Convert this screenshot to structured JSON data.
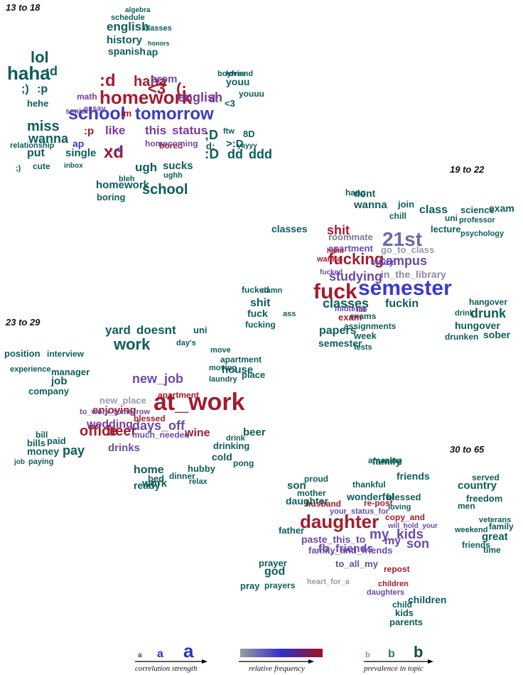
{
  "groups": [
    {
      "label": "13 to 18",
      "words": [
        [
          "homework",
          "#a41c2e",
          26
        ],
        [
          "school",
          "#3a3acb",
          25
        ],
        [
          "tomorrow",
          "#3a3acb",
          24
        ],
        [
          "xd",
          "#a41c2e",
          24
        ],
        [
          ":d",
          "#a41c2e",
          24
        ],
        [
          "haha",
          "#a41c2e",
          20
        ],
        [
          "<3",
          "#a41c2e",
          22
        ],
        [
          "(:",
          "#a41c2e",
          22
        ],
        [
          "english",
          "#7a3a9a",
          18
        ],
        [
          "like",
          "#7a3a9a",
          17
        ],
        [
          "this",
          "#7a3a9a",
          17
        ],
        [
          "status",
          "#7a3a9a",
          17
        ],
        [
          ":p",
          "#a41c2e",
          15
        ],
        [
          "im",
          "#a41c2e",
          13
        ],
        [
          "bored",
          "#a41c2e",
          12
        ],
        [
          "homecoming",
          "#6a4aa8",
          12
        ],
        [
          "prom",
          "#6a4aa8",
          15
        ],
        [
          "lol",
          "#0d5d5a",
          22
        ],
        [
          "haha",
          "#0d5d5a",
          26
        ],
        [
          ":d",
          "#0d5d5a",
          18
        ],
        [
          ";)",
          "#0d5d5a",
          16
        ],
        [
          ":p",
          "#0d5d5a",
          16
        ],
        [
          "hehe",
          "#0d5d5a",
          13
        ],
        [
          "miss",
          "#0d5d5a",
          20
        ],
        [
          "wanna",
          "#0d5d5a",
          18
        ],
        [
          "put",
          "#0d5d5a",
          16
        ],
        [
          "single",
          "#0d5d5a",
          15
        ],
        [
          "relationship",
          "#0d5d5a",
          11
        ],
        [
          "cute",
          "#0d5d5a",
          12
        ],
        [
          "inbox",
          "#0d5d5a",
          10
        ],
        [
          ";)",
          "#0d5d5a",
          11
        ],
        [
          "english",
          "#0d5d5a",
          17
        ],
        [
          "history",
          "#0d5d5a",
          15
        ],
        [
          "spanish",
          "#0d5d5a",
          14
        ],
        [
          "ap",
          "#0d5d5a",
          14
        ],
        [
          "classes",
          "#0d5d5a",
          11
        ],
        [
          "schedule",
          "#0d5d5a",
          11
        ],
        [
          "algebra",
          "#0d5d5a",
          10
        ],
        [
          "honors",
          "#0d5d5a",
          9
        ],
        [
          ":D",
          "#0d5d5a",
          19
        ],
        [
          ";D",
          "#0d5d5a",
          18
        ],
        [
          "dd",
          "#0d5d5a",
          18
        ],
        [
          "ddd",
          "#0d5d5a",
          18
        ],
        [
          ">:D",
          "#0d5d5a",
          15
        ],
        [
          "d:",
          "#0d5d5a",
          13
        ],
        [
          "8D",
          "#0d5d5a",
          13
        ],
        [
          "ftw",
          "#0d5d5a",
          11
        ],
        [
          "yayyy",
          "#0d5d5a",
          10
        ],
        [
          "youu",
          "#0d5d5a",
          14
        ],
        [
          "youuu",
          "#0d5d5a",
          12
        ],
        [
          "<3",
          "#0d5d5a",
          13
        ],
        [
          "boyfriend",
          "#0d5d5a",
          11
        ],
        [
          "lovee",
          "#0d5d5a",
          11
        ],
        [
          "ugh",
          "#0d5d5a",
          17
        ],
        [
          "homework",
          "#0d5d5a",
          15
        ],
        [
          "school",
          "#0d5d5a",
          20
        ],
        [
          "boring",
          "#0d5d5a",
          13
        ],
        [
          "sucks",
          "#0d5d5a",
          15
        ],
        [
          "ughh",
          "#0d5d5a",
          11
        ],
        [
          "bleh",
          "#0d5d5a",
          11
        ],
        [
          "math",
          "#7a3a9a",
          12
        ],
        [
          "senior",
          "#6a4aa8",
          11
        ],
        [
          "essay",
          "#6a4aa8",
          11
        ],
        [
          "d:",
          "#7a3a9a",
          15
        ],
        [
          "ap",
          "#3a3acb",
          14
        ],
        [
          ":_o",
          "#3a3acb",
          12
        ]
      ]
    },
    {
      "label": "19 to 22",
      "words": [
        [
          "fuck",
          "#a41c2e",
          30
        ],
        [
          "semester",
          "#3a3acb",
          30
        ],
        [
          "21st",
          "#6a6ab0",
          28
        ],
        [
          "fucking",
          "#a41c2e",
          22
        ],
        [
          "campus",
          "#6a4aa8",
          18
        ],
        [
          "studying",
          "#6a4aa8",
          18
        ],
        [
          "shit",
          "#a41c2e",
          18
        ],
        [
          "apartment",
          "#6a4aa8",
          13
        ],
        [
          "roommate",
          "#7a7a9a",
          13
        ],
        [
          "in_the_library",
          "#8a8aa0",
          14
        ],
        [
          "go_to_class",
          "#9a9aa8",
          13
        ],
        [
          "wanna",
          "#a41c2e",
          11
        ],
        [
          "haha",
          "#a41c2e",
          10
        ],
        [
          "fucked",
          "#6a4aa8",
          10
        ],
        [
          "study",
          "#6a4aa8",
          12
        ],
        [
          "classes",
          "#0d5d5a",
          18
        ],
        [
          "fuckin",
          "#0d5d5a",
          16
        ],
        [
          "papers",
          "#0d5d5a",
          16
        ],
        [
          "semester",
          "#0d5d5a",
          14
        ],
        [
          "classes",
          "#0d5d5a",
          14
        ],
        [
          "wanna",
          "#0d5d5a",
          15
        ],
        [
          "dont",
          "#0d5d5a",
          14
        ],
        [
          "join",
          "#0d5d5a",
          13
        ],
        [
          "hang",
          "#0d5d5a",
          12
        ],
        [
          "chill",
          "#0d5d5a",
          12
        ],
        [
          "uni",
          "#0d5d5a",
          12
        ],
        [
          "class",
          "#0d5d5a",
          16
        ],
        [
          "exam",
          "#0d5d5a",
          14
        ],
        [
          "science",
          "#0d5d5a",
          13
        ],
        [
          "lecture",
          "#0d5d5a",
          13
        ],
        [
          "psychology",
          "#0d5d5a",
          11
        ],
        [
          "professor",
          "#0d5d5a",
          11
        ],
        [
          "drunk",
          "#0d5d5a",
          18
        ],
        [
          "hungover",
          "#0d5d5a",
          14
        ],
        [
          "hangover",
          "#0d5d5a",
          12
        ],
        [
          "sober",
          "#0d5d5a",
          14
        ],
        [
          "drunken",
          "#0d5d5a",
          12
        ],
        [
          "drink",
          "#0d5d5a",
          11
        ],
        [
          "fucked",
          "#0d5d5a",
          12
        ],
        [
          "damn",
          "#0d5d5a",
          11
        ],
        [
          "shit",
          "#0d5d5a",
          16
        ],
        [
          "fuck",
          "#0d5d5a",
          14
        ],
        [
          "fucking",
          "#0d5d5a",
          12
        ],
        [
          "ass",
          "#0d5d5a",
          11
        ],
        [
          "exams",
          "#0d5d5a",
          12
        ],
        [
          "assignments",
          "#0d5d5a",
          12
        ],
        [
          "week",
          "#0d5d5a",
          13
        ],
        [
          "tests",
          "#0d5d5a",
          11
        ],
        [
          "exam",
          "#a41c2e",
          13
        ],
        [
          "midterm",
          "#6a4aa8",
          11
        ],
        [
          "lab",
          "#7a3a9a",
          10
        ]
      ]
    },
    {
      "label": "23 to 29",
      "words": [
        [
          "at_work",
          "#a41c2e",
          34
        ],
        [
          "office",
          "#a41c2e",
          20
        ],
        [
          "beer",
          "#a41c2e",
          20
        ],
        [
          "days_off",
          "#6a4aa8",
          18
        ],
        [
          "new_job",
          "#6a4aa8",
          18
        ],
        [
          "enjoying",
          "#a41c2e",
          15
        ],
        [
          "wedding",
          "#7a3a9a",
          16
        ],
        [
          "wine",
          "#a41c2e",
          16
        ],
        [
          "drinks",
          "#6a4aa8",
          15
        ],
        [
          "new_place",
          "#9a9aa8",
          13
        ],
        [
          "blessed",
          "#a41c2e",
          12
        ],
        [
          "apartment",
          "#a41c2e",
          12
        ],
        [
          "much_needed",
          "#6a4aa8",
          12
        ],
        [
          "to_work_tomorrow",
          "#6a4aa8",
          11
        ],
        [
          "work",
          "#0d5d5a",
          22
        ],
        [
          "yard",
          "#0d5d5a",
          17
        ],
        [
          "doesnt",
          "#0d5d5a",
          17
        ],
        [
          "uni",
          "#0d5d5a",
          13
        ],
        [
          "day's",
          "#0d5d5a",
          11
        ],
        [
          "house",
          "#0d5d5a",
          15
        ],
        [
          "apartment",
          "#0d5d5a",
          12
        ],
        [
          "place",
          "#0d5d5a",
          13
        ],
        [
          "position",
          "#0d5d5a",
          13
        ],
        [
          "interview",
          "#0d5d5a",
          12
        ],
        [
          "manager",
          "#0d5d5a",
          13
        ],
        [
          "job",
          "#0d5d5a",
          15
        ],
        [
          "company",
          "#0d5d5a",
          13
        ],
        [
          "experience",
          "#0d5d5a",
          11
        ],
        [
          "pay",
          "#0d5d5a",
          18
        ],
        [
          "money",
          "#0d5d5a",
          14
        ],
        [
          "paid",
          "#0d5d5a",
          13
        ],
        [
          "bills",
          "#0d5d5a",
          13
        ],
        [
          "bill",
          "#0d5d5a",
          12
        ],
        [
          "paying",
          "#0d5d5a",
          11
        ],
        [
          "job",
          "#0d5d5a",
          10
        ],
        [
          "beer",
          "#0d5d5a",
          15
        ],
        [
          "drinking",
          "#0d5d5a",
          13
        ],
        [
          "cold",
          "#0d5d5a",
          14
        ],
        [
          "pong",
          "#0d5d5a",
          12
        ],
        [
          "drink",
          "#0d5d5a",
          11
        ],
        [
          "home",
          "#0d5d5a",
          16
        ],
        [
          "ready",
          "#0d5d5a",
          14
        ],
        [
          "work",
          "#0d5d5a",
          15
        ],
        [
          "hubby",
          "#0d5d5a",
          13
        ],
        [
          "relax",
          "#0d5d5a",
          11
        ],
        [
          "bed",
          "#0d5d5a",
          13
        ],
        [
          "dinner",
          "#0d5d5a",
          12
        ],
        [
          "moving",
          "#0d5d5a",
          11
        ],
        [
          "laundry",
          "#0d5d5a",
          11
        ],
        [
          "move",
          "#0d5d5a",
          11
        ]
      ]
    },
    {
      "label": "30 to 65",
      "words": [
        [
          "daughter",
          "#a41c2e",
          26
        ],
        [
          "my_kids",
          "#6a4aa8",
          19
        ],
        [
          "son",
          "#6a4aa8",
          18
        ],
        [
          "my",
          "#6a4aa8",
          16
        ],
        [
          "fb_friends",
          "#6a4aa8",
          16
        ],
        [
          "paste_this_to",
          "#6a4aa8",
          14
        ],
        [
          "to_all_my",
          "#6a4aa8",
          13
        ],
        [
          "family_and_friends",
          "#6a4aa8",
          13
        ],
        [
          "repost",
          "#a41c2e",
          12
        ],
        [
          "copy_and",
          "#a41c2e",
          12
        ],
        [
          "re-post",
          "#a41c2e",
          12
        ],
        [
          "husband",
          "#a41c2e",
          12
        ],
        [
          "your_status_for",
          "#6a4aa8",
          11
        ],
        [
          "will_hold_your",
          "#6a4aa8",
          10
        ],
        [
          "heart_for_a",
          "#9a9aa8",
          11
        ],
        [
          "daughters",
          "#6a4aa8",
          11
        ],
        [
          "children",
          "#a41c2e",
          11
        ],
        [
          "family",
          "#0d5d5a",
          14
        ],
        [
          "friends",
          "#0d5d5a",
          14
        ],
        [
          "amazing",
          "#0d5d5a",
          12
        ],
        [
          "wonderful",
          "#0d5d5a",
          14
        ],
        [
          "blessed",
          "#0d5d5a",
          13
        ],
        [
          "thankful",
          "#0d5d5a",
          12
        ],
        [
          "loving",
          "#0d5d5a",
          11
        ],
        [
          "son",
          "#0d5d5a",
          15
        ],
        [
          "daughter",
          "#0d5d5a",
          14
        ],
        [
          "father",
          "#0d5d5a",
          13
        ],
        [
          "mother",
          "#0d5d5a",
          12
        ],
        [
          "proud",
          "#0d5d5a",
          12
        ],
        [
          "country",
          "#0d5d5a",
          15
        ],
        [
          "freedom",
          "#0d5d5a",
          13
        ],
        [
          "men",
          "#0d5d5a",
          12
        ],
        [
          "veterans",
          "#0d5d5a",
          11
        ],
        [
          "served",
          "#0d5d5a",
          12
        ],
        [
          "great",
          "#0d5d5a",
          15
        ],
        [
          "weekend",
          "#0d5d5a",
          11
        ],
        [
          "friends",
          "#0d5d5a",
          12
        ],
        [
          "family",
          "#0d5d5a",
          12
        ],
        [
          "time",
          "#0d5d5a",
          12
        ],
        [
          "god",
          "#0d5d5a",
          16
        ],
        [
          "prayer",
          "#0d5d5a",
          13
        ],
        [
          "prayers",
          "#0d5d5a",
          12
        ],
        [
          "pray",
          "#0d5d5a",
          13
        ],
        [
          "children",
          "#0d5d5a",
          14
        ],
        [
          "kids",
          "#0d5d5a",
          13
        ],
        [
          "parents",
          "#0d5d5a",
          13
        ],
        [
          "child",
          "#0d5d5a",
          12
        ]
      ]
    }
  ],
  "legend": {
    "size_glyph": "a",
    "prevalence_glyph": "b",
    "captions": [
      "correlation strength",
      "relative frequency",
      "prevalence in topic"
    ],
    "gradient": [
      "#9a9aa0",
      "#3030c8",
      "#a01020"
    ]
  }
}
